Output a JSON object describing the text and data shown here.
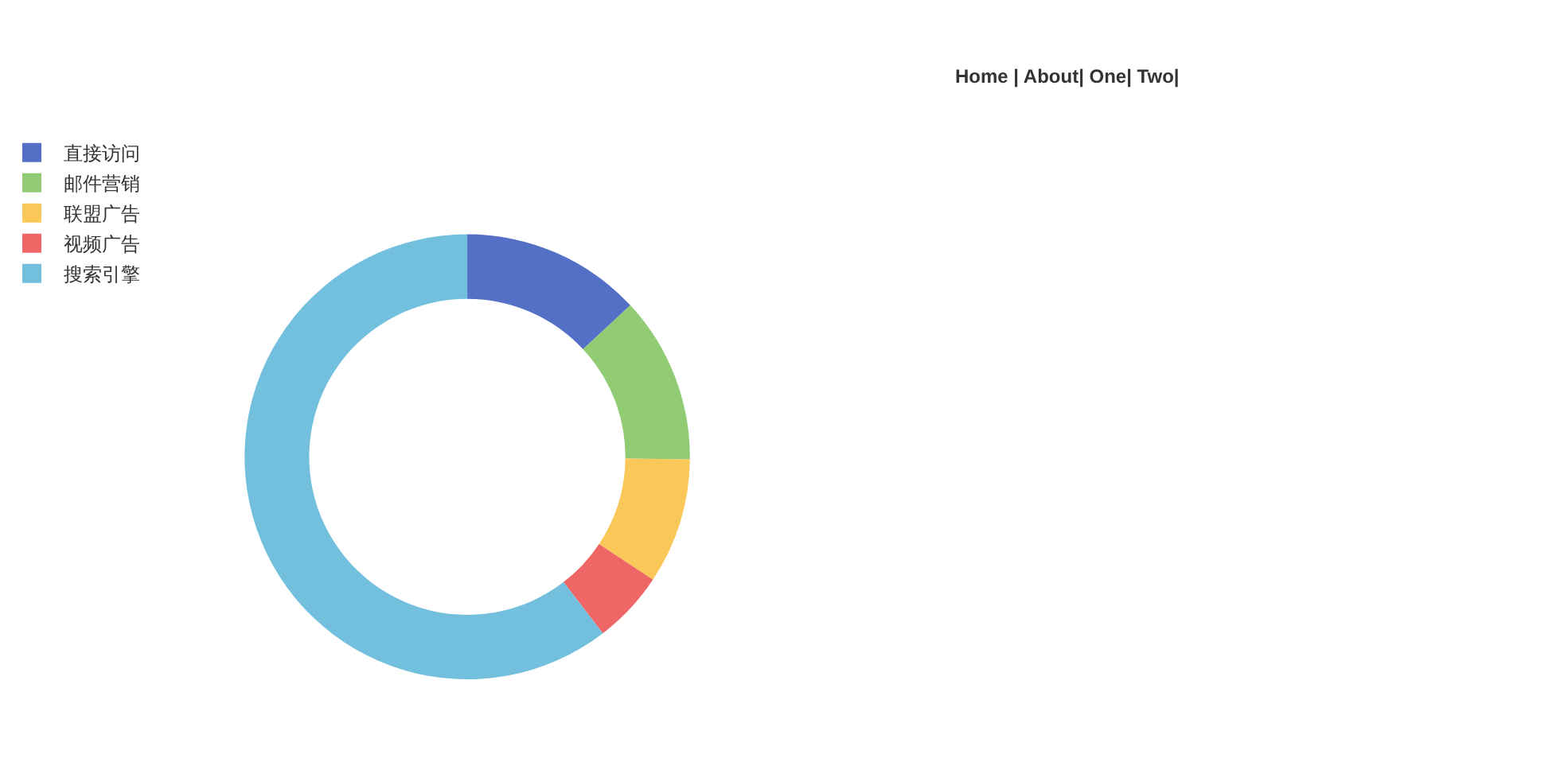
{
  "chart_data": {
    "type": "donut",
    "categories": [
      "直接访问",
      "邮件营销",
      "联盟广告",
      "视频广告",
      "搜索引擎"
    ],
    "values": [
      13.08,
      12.1,
      9.13,
      5.27,
      60.42
    ],
    "colors": [
      "#5470c6",
      "#91cc75",
      "#fac858",
      "#ee6666",
      "#73c0de"
    ],
    "legend": "top left",
    "annotations": [
      "Home | About| One| Two|"
    ]
  }
}
